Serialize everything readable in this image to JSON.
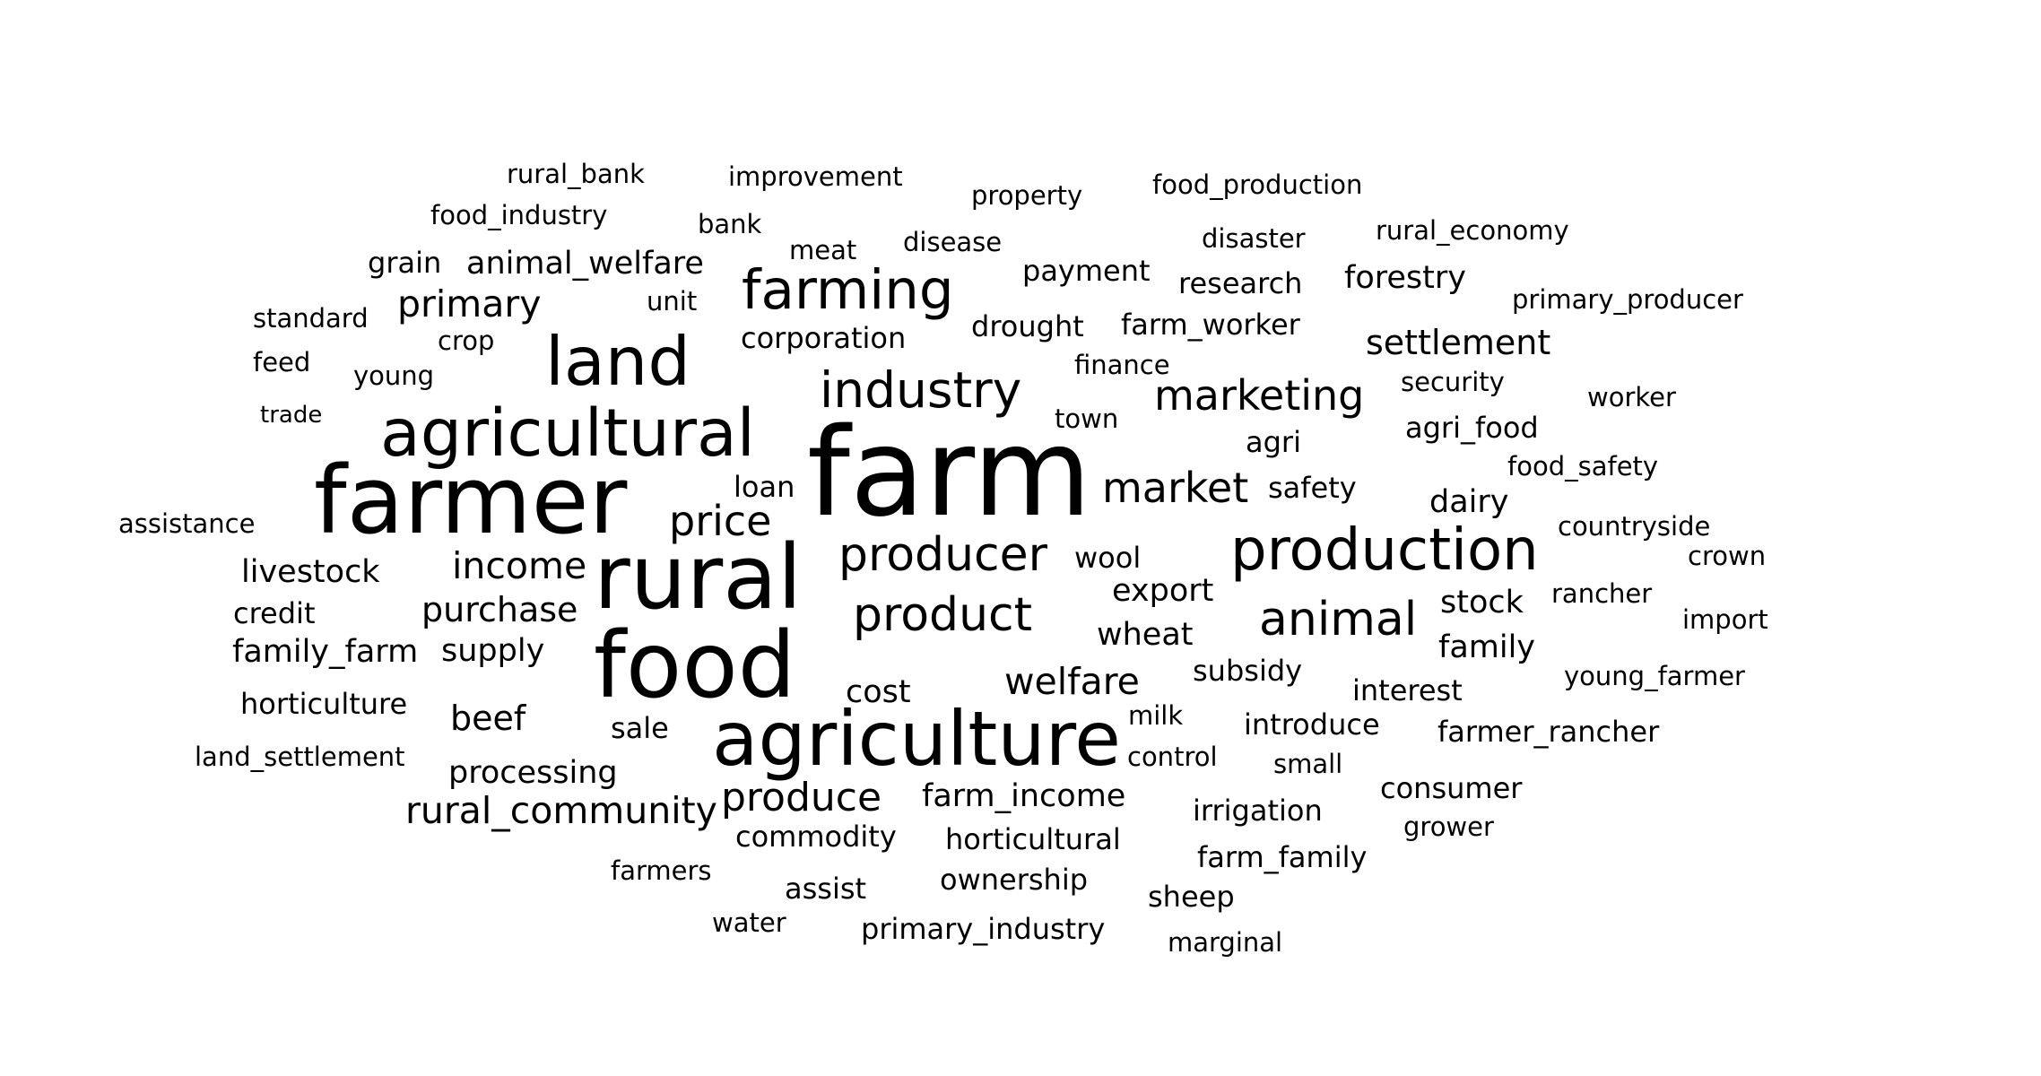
{
  "text_color": "#000000",
  "background": "#ffffff",
  "words": [
    {
      "text": "rural_bank",
      "weight": 1
    },
    {
      "text": "improvement",
      "weight": 1
    },
    {
      "text": "property",
      "weight": 1
    },
    {
      "text": "food_production",
      "weight": 1
    },
    {
      "text": "food_industry",
      "weight": 1
    },
    {
      "text": "bank",
      "weight": 1
    },
    {
      "text": "meat",
      "weight": 1
    },
    {
      "text": "disease",
      "weight": 1
    },
    {
      "text": "disaster",
      "weight": 1
    },
    {
      "text": "rural_economy",
      "weight": 1
    },
    {
      "text": "grain",
      "weight": 1.1
    },
    {
      "text": "animal_welfare",
      "weight": 1.2
    },
    {
      "text": "payment",
      "weight": 1.1
    },
    {
      "text": "research",
      "weight": 1.1
    },
    {
      "text": "forestry",
      "weight": 1.2
    },
    {
      "text": "standard",
      "weight": 1
    },
    {
      "text": "primary",
      "weight": 1.4
    },
    {
      "text": "unit",
      "weight": 1
    },
    {
      "text": "farming",
      "weight": 2.1
    },
    {
      "text": "drought",
      "weight": 1.1
    },
    {
      "text": "farm_worker",
      "weight": 1.1
    },
    {
      "text": "primary_producer",
      "weight": 1
    },
    {
      "text": "crop",
      "weight": 1
    },
    {
      "text": "corporation",
      "weight": 1.1
    },
    {
      "text": "settlement",
      "weight": 1.3
    },
    {
      "text": "feed",
      "weight": 1
    },
    {
      "text": "young",
      "weight": 1
    },
    {
      "text": "land",
      "weight": 2.6
    },
    {
      "text": "finance",
      "weight": 1
    },
    {
      "text": "industry",
      "weight": 1.9
    },
    {
      "text": "security",
      "weight": 1
    },
    {
      "text": "worker",
      "weight": 1
    },
    {
      "text": "marketing",
      "weight": 1.6
    },
    {
      "text": "trade",
      "weight": 0.9
    },
    {
      "text": "agricultural",
      "weight": 2.5
    },
    {
      "text": "town",
      "weight": 1
    },
    {
      "text": "agri_food",
      "weight": 1.1
    },
    {
      "text": "agri",
      "weight": 1.1
    },
    {
      "text": "farm",
      "weight": 4.7
    },
    {
      "text": "food_safety",
      "weight": 1
    },
    {
      "text": "farmer",
      "weight": 3.6
    },
    {
      "text": "loan",
      "weight": 1.1
    },
    {
      "text": "market",
      "weight": 1.6
    },
    {
      "text": "safety",
      "weight": 1.1
    },
    {
      "text": "dairy",
      "weight": 1.2
    },
    {
      "text": "assistance",
      "weight": 1
    },
    {
      "text": "price",
      "weight": 1.6
    },
    {
      "text": "countryside",
      "weight": 1
    },
    {
      "text": "production",
      "weight": 2.2
    },
    {
      "text": "producer",
      "weight": 1.8
    },
    {
      "text": "wool",
      "weight": 1.1
    },
    {
      "text": "crown",
      "weight": 1
    },
    {
      "text": "livestock",
      "weight": 1.2
    },
    {
      "text": "income",
      "weight": 1.4
    },
    {
      "text": "rural",
      "weight": 3.4
    },
    {
      "text": "export",
      "weight": 1.2
    },
    {
      "text": "rancher",
      "weight": 1
    },
    {
      "text": "credit",
      "weight": 1.1
    },
    {
      "text": "purchase",
      "weight": 1.3
    },
    {
      "text": "product",
      "weight": 1.8
    },
    {
      "text": "animal",
      "weight": 1.8
    },
    {
      "text": "stock",
      "weight": 1.2
    },
    {
      "text": "import",
      "weight": 1
    },
    {
      "text": "wheat",
      "weight": 1.2
    },
    {
      "text": "family_farm",
      "weight": 1.2
    },
    {
      "text": "supply",
      "weight": 1.2
    },
    {
      "text": "family",
      "weight": 1.2
    },
    {
      "text": "food",
      "weight": 3.5
    },
    {
      "text": "subsidy",
      "weight": 1.1
    },
    {
      "text": "welfare",
      "weight": 1.4
    },
    {
      "text": "young_farmer",
      "weight": 1
    },
    {
      "text": "interest",
      "weight": 1.1
    },
    {
      "text": "cost",
      "weight": 1.2
    },
    {
      "text": "horticulture",
      "weight": 1.1
    },
    {
      "text": "beef",
      "weight": 1.3
    },
    {
      "text": "milk",
      "weight": 1
    },
    {
      "text": "introduce",
      "weight": 1.1
    },
    {
      "text": "sale",
      "weight": 1.1
    },
    {
      "text": "farmer_rancher",
      "weight": 1.1
    },
    {
      "text": "agriculture",
      "weight": 2.9
    },
    {
      "text": "land_settlement",
      "weight": 1
    },
    {
      "text": "control",
      "weight": 1
    },
    {
      "text": "small",
      "weight": 1
    },
    {
      "text": "processing",
      "weight": 1.2
    },
    {
      "text": "consumer",
      "weight": 1.1
    },
    {
      "text": "rural_community",
      "weight": 1.4
    },
    {
      "text": "produce",
      "weight": 1.5
    },
    {
      "text": "farm_income",
      "weight": 1.2
    },
    {
      "text": "irrigation",
      "weight": 1.1
    },
    {
      "text": "commodity",
      "weight": 1.1
    },
    {
      "text": "horticultural",
      "weight": 1.1
    },
    {
      "text": "grower",
      "weight": 1
    },
    {
      "text": "farm_family",
      "weight": 1.1
    },
    {
      "text": "farmers",
      "weight": 1
    },
    {
      "text": "assist",
      "weight": 1.1
    },
    {
      "text": "ownership",
      "weight": 1.1
    },
    {
      "text": "sheep",
      "weight": 1.1
    },
    {
      "text": "water",
      "weight": 1
    },
    {
      "text": "primary_industry",
      "weight": 1.1
    },
    {
      "text": "marginal",
      "weight": 1
    }
  ]
}
